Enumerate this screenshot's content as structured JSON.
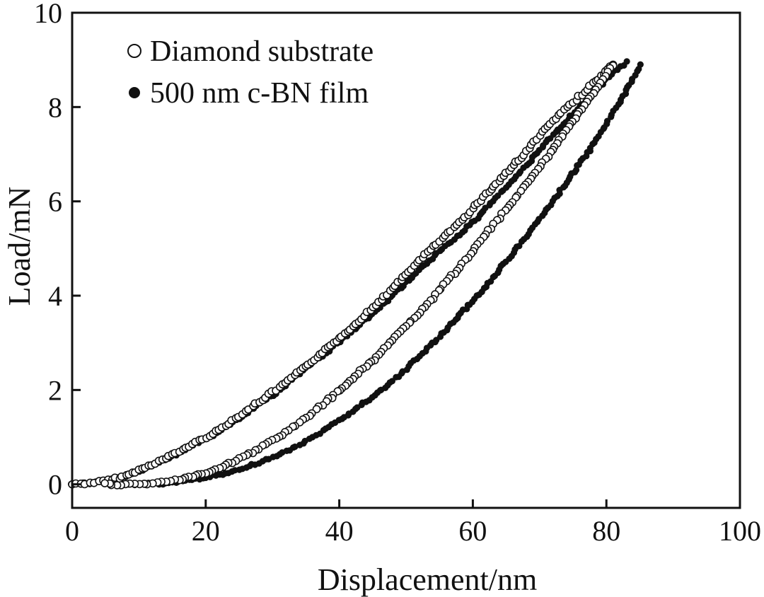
{
  "chart_data": {
    "type": "scatter",
    "title": "",
    "xlabel": "Displacement/nm",
    "ylabel": "Load/mN",
    "xlim": [
      0,
      100
    ],
    "ylim": [
      -0.5,
      10
    ],
    "x_ticks": [
      "0",
      "20",
      "40",
      "60",
      "80",
      "100"
    ],
    "y_ticks": [
      "0",
      "2",
      "4",
      "6",
      "8",
      "10"
    ],
    "grid": false,
    "legend_position": "top-left",
    "series": [
      {
        "name": "Diamond substrate",
        "marker": "open-circle",
        "color": "#111111",
        "loading": {
          "x": [
            0,
            2,
            4,
            6,
            8,
            10,
            12,
            15,
            18,
            20,
            22,
            25,
            28,
            30,
            32,
            35,
            38,
            40,
            42,
            45,
            48,
            50,
            52,
            55,
            58,
            60,
            62,
            65,
            68,
            70,
            72,
            75,
            78,
            80,
            81
          ],
          "y": [
            0.0,
            0.02,
            0.05,
            0.1,
            0.18,
            0.3,
            0.42,
            0.62,
            0.85,
            1.0,
            1.15,
            1.45,
            1.75,
            1.95,
            2.15,
            2.5,
            2.85,
            3.1,
            3.35,
            3.75,
            4.15,
            4.45,
            4.75,
            5.15,
            5.55,
            5.85,
            6.15,
            6.6,
            7.05,
            7.4,
            7.7,
            8.1,
            8.5,
            8.75,
            8.9
          ]
        },
        "unloading": {
          "x": [
            81,
            80,
            78,
            76,
            74,
            72,
            70,
            68,
            66,
            64,
            62,
            60,
            58,
            56,
            54,
            52,
            50,
            48,
            46,
            44,
            42,
            40,
            38,
            36,
            34,
            32,
            30,
            28,
            26,
            24,
            22,
            20,
            18,
            16,
            14,
            12,
            10,
            8,
            6,
            5
          ],
          "y": [
            8.9,
            8.65,
            8.3,
            7.9,
            7.5,
            7.1,
            6.75,
            6.35,
            6.0,
            5.65,
            5.3,
            4.95,
            4.6,
            4.3,
            3.95,
            3.65,
            3.35,
            3.05,
            2.75,
            2.5,
            2.25,
            2.0,
            1.75,
            1.52,
            1.3,
            1.1,
            0.92,
            0.76,
            0.6,
            0.47,
            0.35,
            0.25,
            0.16,
            0.1,
            0.05,
            0.02,
            0.0,
            0.0,
            0.0,
            0.0
          ]
        }
      },
      {
        "name": "500 nm c-BN film",
        "marker": "filled-circle",
        "color": "#111111",
        "loading": {
          "x": [
            0,
            2,
            4,
            6,
            8,
            10,
            12,
            15,
            18,
            20,
            22,
            25,
            28,
            30,
            32,
            35,
            38,
            40,
            42,
            45,
            48,
            50,
            52,
            55,
            58,
            60,
            62,
            65,
            68,
            70,
            72,
            75,
            78,
            80,
            82,
            83
          ],
          "y": [
            0.0,
            0.02,
            0.05,
            0.1,
            0.17,
            0.28,
            0.4,
            0.6,
            0.82,
            0.97,
            1.12,
            1.4,
            1.7,
            1.9,
            2.1,
            2.45,
            2.78,
            3.02,
            3.25,
            3.62,
            4.0,
            4.28,
            4.55,
            4.95,
            5.3,
            5.55,
            5.85,
            6.3,
            6.75,
            7.1,
            7.4,
            7.85,
            8.3,
            8.6,
            8.85,
            8.95
          ]
        },
        "unloading": {
          "x": [
            85,
            84,
            82,
            80,
            78,
            76,
            74,
            72,
            70,
            68,
            66,
            64,
            62,
            60,
            58,
            56,
            54,
            52,
            50,
            48,
            46,
            44,
            42,
            40,
            38,
            36,
            34,
            32,
            30,
            28,
            26,
            24,
            22,
            20,
            18,
            16,
            14,
            12,
            10,
            8,
            7
          ],
          "y": [
            8.9,
            8.6,
            8.1,
            7.65,
            7.2,
            6.8,
            6.4,
            6.0,
            5.62,
            5.25,
            4.9,
            4.55,
            4.2,
            3.88,
            3.58,
            3.28,
            2.98,
            2.72,
            2.45,
            2.2,
            1.97,
            1.75,
            1.55,
            1.35,
            1.17,
            1.0,
            0.84,
            0.7,
            0.57,
            0.46,
            0.36,
            0.27,
            0.2,
            0.14,
            0.09,
            0.05,
            0.02,
            0.01,
            0.0,
            0.0,
            0.0
          ]
        }
      }
    ]
  }
}
